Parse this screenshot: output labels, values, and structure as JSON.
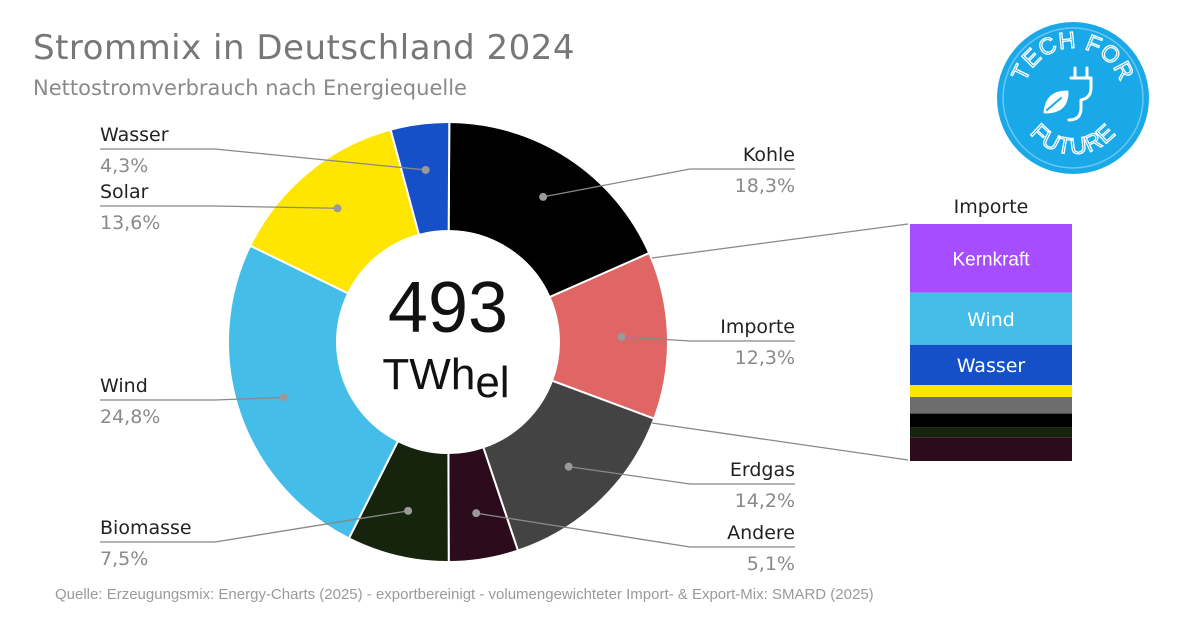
{
  "title": "Strommix in Deutschland 2024",
  "subtitle": "Nettostromverbrauch nach Energiequelle",
  "source": "Quelle: Erzeugungsmix: Energy-Charts (2025) - exportbereinigt - volumengewichteter Import- & Export-Mix: SMARD (2025)",
  "logo": {
    "top_text": "TECH FOR",
    "bottom_text": "FUTURE",
    "color": "#1aa9e8",
    "icon": "plug-leaf-icon"
  },
  "chart_data": {
    "type": "pie",
    "center_value": "493",
    "center_unit": "TWh",
    "center_unit_sub": "el",
    "slices": [
      {
        "label": "Kohle",
        "value": 18.3,
        "display": "18,3%",
        "color": "#000000"
      },
      {
        "label": "Importe",
        "value": 12.3,
        "display": "12,3%",
        "color": "#e06666"
      },
      {
        "label": "Erdgas",
        "value": 14.2,
        "display": "14,2%",
        "color": "#434343"
      },
      {
        "label": "Andere",
        "value": 5.1,
        "display": "5,1%",
        "color": "#2c0b1c"
      },
      {
        "label": "Biomasse",
        "value": 7.5,
        "display": "7,5%",
        "color": "#17240d"
      },
      {
        "label": "Wind",
        "value": 24.8,
        "display": "24,8%",
        "color": "#45bde9"
      },
      {
        "label": "Solar",
        "value": 13.6,
        "display": "13,6%",
        "color": "#ffe600"
      },
      {
        "label": "Wasser",
        "value": 4.3,
        "display": "4,3%",
        "color": "#1650c8"
      }
    ],
    "imports_breakdown": {
      "title": "Importe",
      "segments": [
        {
          "label": "Kernkraft",
          "color": "#a64dff",
          "share": 0.29
        },
        {
          "label": "Wind",
          "color": "#45bde9",
          "share": 0.22
        },
        {
          "label": "Wasser",
          "color": "#1650c8",
          "share": 0.17
        },
        {
          "label": "",
          "color": "#ffe600",
          "share": 0.05
        },
        {
          "label": "",
          "color": "#6d6d6d",
          "share": 0.07
        },
        {
          "label": "",
          "color": "#000000",
          "share": 0.06
        },
        {
          "label": "",
          "color": "#17240d",
          "share": 0.04
        },
        {
          "label": "",
          "color": "#2c0b1c",
          "share": 0.1
        }
      ]
    }
  }
}
